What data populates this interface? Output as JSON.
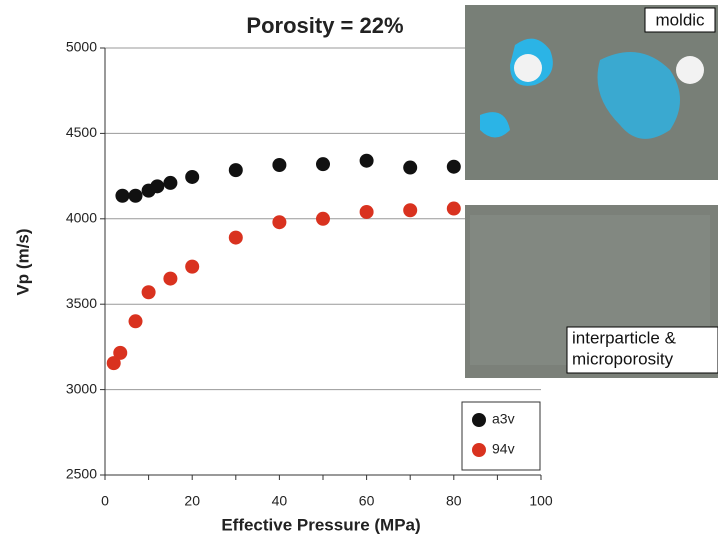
{
  "chart_data": {
    "type": "scatter",
    "title": "Porosity = 22%",
    "xlabel": "Effective Pressure (MPa)",
    "ylabel": "Vp (m/s)",
    "xlim": [
      0,
      100
    ],
    "xticks": [
      0,
      10,
      20,
      30,
      40,
      50,
      60,
      70,
      80,
      90,
      100
    ],
    "ylim": [
      2500,
      5000
    ],
    "yticks": [
      2500,
      3000,
      3500,
      4000,
      4500,
      5000
    ],
    "grid": true,
    "legend": "lower right",
    "series": [
      {
        "name": "a3v",
        "color": "#111111",
        "x": [
          4,
          7,
          10,
          12,
          15,
          20,
          30,
          40,
          50,
          60,
          70,
          80
        ],
        "values": [
          4135,
          4135,
          4165,
          4190,
          4210,
          4245,
          4285,
          4315,
          4320,
          4340,
          4300,
          4305
        ]
      },
      {
        "name": "94v",
        "color": "#d9321f",
        "x": [
          2,
          3.5,
          7,
          10,
          15,
          20,
          30,
          40,
          50,
          60,
          70,
          80
        ],
        "values": [
          3155,
          3215,
          3400,
          3570,
          3650,
          3720,
          3890,
          3980,
          4000,
          4040,
          4050,
          4060
        ]
      }
    ],
    "annotations": [
      "moldic",
      "interparticle &",
      "microporosity"
    ]
  }
}
